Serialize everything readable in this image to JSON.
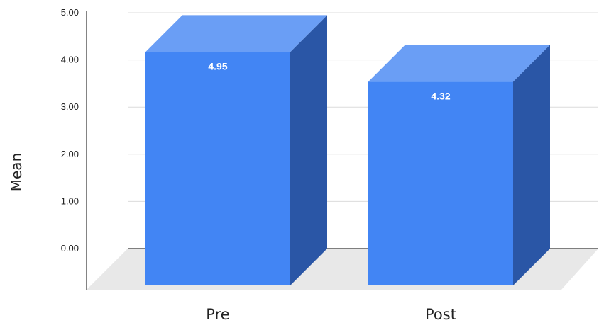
{
  "chart_data": {
    "type": "bar",
    "style": "3d-column",
    "categories": [
      "Pre",
      "Post"
    ],
    "series": [
      {
        "values": [
          4.95,
          4.32
        ],
        "data_labels": [
          "4.95",
          "4.32"
        ],
        "color": "#4285f4"
      }
    ],
    "title": "",
    "xlabel": "",
    "ylabel": "Mean",
    "ylim": [
      0,
      5
    ],
    "yticks": [
      "0.00",
      "1.00",
      "2.00",
      "3.00",
      "4.00",
      "5.00"
    ],
    "grid": true,
    "legend": "none"
  },
  "colors": {
    "bar_front": "#4285f4",
    "bar_top": "#6a9ef5",
    "bar_side": "#2a56a6",
    "floor": "#e8e8e8",
    "grid": "#dcdcdc",
    "axis": "#333333"
  }
}
